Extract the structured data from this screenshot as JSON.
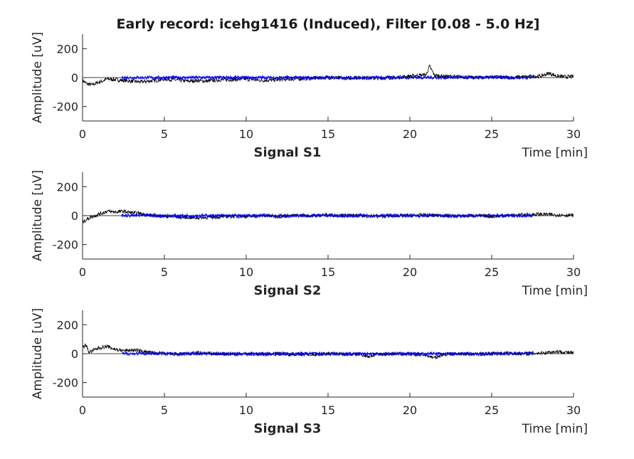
{
  "chart_data": {
    "type": "line",
    "title": "Early record: icehg1416 (Induced), Filter [0.08 - 5.0 Hz]",
    "colors": {
      "raw": "#000000",
      "highlight": "#0000ff"
    },
    "subplots": [
      {
        "label": "Signal S1",
        "xlabel": "Time [min]",
        "ylabel": "Amplitude [uV]",
        "xlim": [
          0,
          30
        ],
        "ylim": [
          -300,
          300
        ],
        "xticks": [
          "0",
          "5",
          "10",
          "15",
          "20",
          "25",
          "30"
        ],
        "yticks": [
          "200",
          "0",
          "-200"
        ],
        "highlight_range": [
          2.4,
          27.5
        ],
        "series": [
          {
            "color": "black",
            "x": [
              0,
              0.3,
              0.6,
              0.9,
              1.2,
              1.5,
              2,
              2.5,
              3,
              3.5,
              4,
              4.5,
              5,
              5.5,
              6,
              6.5,
              7,
              7.5,
              8,
              8.5,
              9,
              10,
              11,
              12,
              13,
              14,
              15,
              16,
              17,
              18,
              19,
              20,
              20.5,
              21,
              21.2,
              21.5,
              22,
              23,
              24,
              25,
              26,
              27,
              28,
              28.5,
              29,
              29.5,
              30
            ],
            "y": [
              -20,
              -45,
              -50,
              -35,
              -25,
              -10,
              -15,
              -20,
              -25,
              -30,
              -25,
              -20,
              -10,
              -15,
              -20,
              -25,
              -20,
              -25,
              -20,
              -15,
              -15,
              -10,
              -20,
              -15,
              -10,
              -5,
              0,
              -5,
              0,
              -5,
              0,
              10,
              15,
              20,
              80,
              15,
              10,
              5,
              0,
              5,
              0,
              5,
              10,
              30,
              10,
              5,
              8
            ]
          }
        ]
      },
      {
        "label": "Signal S2",
        "xlabel": "Time [min]",
        "ylabel": "Amplitude [uV]",
        "xlim": [
          0,
          30
        ],
        "ylim": [
          -300,
          300
        ],
        "xticks": [
          "0",
          "5",
          "10",
          "15",
          "20",
          "25",
          "30"
        ],
        "yticks": [
          "200",
          "0",
          "-200"
        ],
        "highlight_range": [
          2.4,
          27.5
        ],
        "series": [
          {
            "color": "black",
            "x": [
              0,
              0.2,
              0.5,
              1,
              1.5,
              2,
              2.5,
              3,
              3.5,
              4,
              5,
              6,
              7,
              8,
              9,
              10,
              11,
              12,
              13,
              14,
              15,
              16,
              17,
              18,
              19,
              20,
              21,
              22,
              23,
              24,
              25,
              26,
              27,
              28,
              29,
              30
            ],
            "y": [
              -45,
              -30,
              -10,
              10,
              30,
              25,
              30,
              20,
              15,
              5,
              -5,
              -10,
              -15,
              -10,
              -5,
              -5,
              0,
              -5,
              0,
              0,
              5,
              0,
              0,
              -5,
              0,
              0,
              5,
              0,
              -5,
              0,
              -5,
              0,
              5,
              10,
              5,
              2
            ]
          }
        ]
      },
      {
        "label": "Signal S3",
        "xlabel": "Time [min]",
        "ylabel": "Amplitude [uV]",
        "xlim": [
          0,
          30
        ],
        "ylim": [
          -300,
          300
        ],
        "xticks": [
          "0",
          "5",
          "10",
          "15",
          "20",
          "25",
          "30"
        ],
        "yticks": [
          "200",
          "0",
          "-200"
        ],
        "highlight_range": [
          2.4,
          27.5
        ],
        "series": [
          {
            "color": "black",
            "x": [
              0,
              0.2,
              0.4,
              0.6,
              1,
              1.5,
              2,
              2.5,
              3,
              3.5,
              4,
              5,
              6,
              7,
              8,
              9,
              10,
              11,
              12,
              13,
              14,
              15,
              16,
              17,
              17.5,
              18,
              19,
              20,
              21,
              21.5,
              22,
              23,
              24,
              25,
              26,
              27,
              28,
              28.5,
              29,
              30
            ],
            "y": [
              45,
              60,
              10,
              20,
              40,
              50,
              30,
              20,
              25,
              20,
              10,
              0,
              -5,
              5,
              0,
              -5,
              0,
              -5,
              0,
              -5,
              -5,
              0,
              -5,
              -5,
              -20,
              -5,
              0,
              -5,
              -10,
              -30,
              -5,
              0,
              -5,
              0,
              5,
              0,
              5,
              10,
              15,
              5
            ]
          }
        ]
      }
    ]
  }
}
